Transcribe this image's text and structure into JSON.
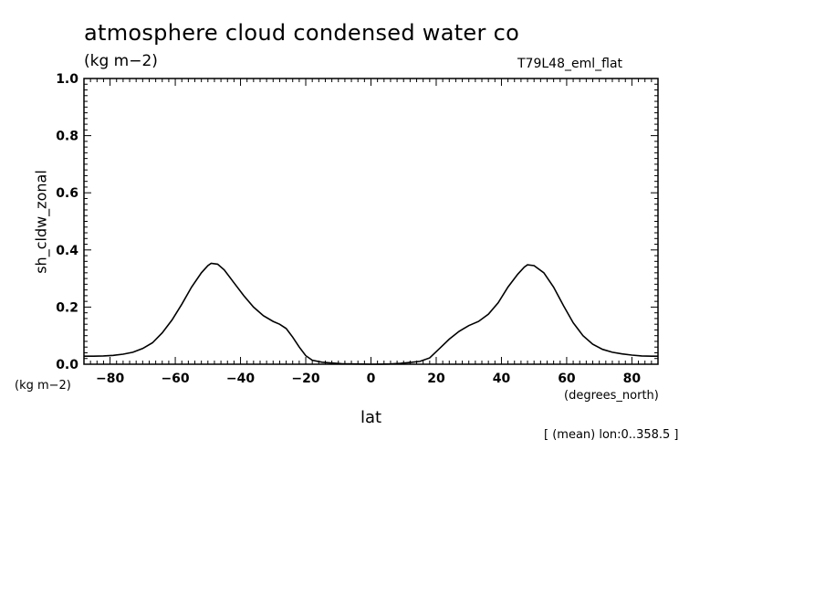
{
  "chart_data": {
    "type": "line",
    "title": "atmosphere cloud condensed water co",
    "units": "(kg m−2)",
    "run_name": "T79L48_eml_flat",
    "ylabel": "sh_cldw_zonal",
    "ylabel_units": "(kg m−2)",
    "xlabel": "lat",
    "xlabel_units": "(degrees_north)",
    "note": "[ (mean) lon:0..358.5 ]",
    "xlim": [
      -88,
      88
    ],
    "ylim": [
      0.0,
      1.0
    ],
    "x_ticks": [
      -80,
      -60,
      -40,
      -20,
      0,
      20,
      40,
      60,
      80
    ],
    "x_tick_labels": [
      "−80",
      "−60",
      "−40",
      "−20",
      "0",
      "20",
      "40",
      "60",
      "80"
    ],
    "y_ticks": [
      0.0,
      0.2,
      0.4,
      0.6,
      0.8,
      1.0
    ],
    "y_tick_labels": [
      "0.0",
      "0.2",
      "0.4",
      "0.6",
      "0.8",
      "1.0"
    ],
    "x": [
      -88,
      -85,
      -82,
      -79,
      -76,
      -73,
      -70,
      -67,
      -64,
      -61,
      -58,
      -55,
      -52,
      -50,
      -49,
      -47,
      -45,
      -42,
      -39,
      -36,
      -33,
      -30,
      -28,
      -26,
      -24,
      -22,
      -20,
      -18,
      -15,
      -12,
      -9,
      -6,
      -3,
      0,
      3,
      6,
      9,
      12,
      15,
      18,
      21,
      24,
      27,
      30,
      33,
      36,
      39,
      42,
      45,
      47,
      48,
      50,
      53,
      56,
      59,
      62,
      65,
      68,
      71,
      74,
      77,
      80,
      83,
      86,
      88
    ],
    "y": [
      0.028,
      0.028,
      0.029,
      0.031,
      0.035,
      0.042,
      0.055,
      0.075,
      0.11,
      0.155,
      0.21,
      0.27,
      0.32,
      0.345,
      0.353,
      0.35,
      0.33,
      0.285,
      0.24,
      0.2,
      0.17,
      0.15,
      0.14,
      0.125,
      0.095,
      0.06,
      0.03,
      0.014,
      0.007,
      0.004,
      0.002,
      0.001,
      0.0005,
      0.0,
      0.0003,
      0.001,
      0.003,
      0.006,
      0.01,
      0.022,
      0.055,
      0.088,
      0.115,
      0.135,
      0.15,
      0.175,
      0.215,
      0.27,
      0.315,
      0.34,
      0.348,
      0.345,
      0.32,
      0.27,
      0.205,
      0.145,
      0.1,
      0.07,
      0.052,
      0.042,
      0.036,
      0.032,
      0.029,
      0.028,
      0.028
    ]
  }
}
